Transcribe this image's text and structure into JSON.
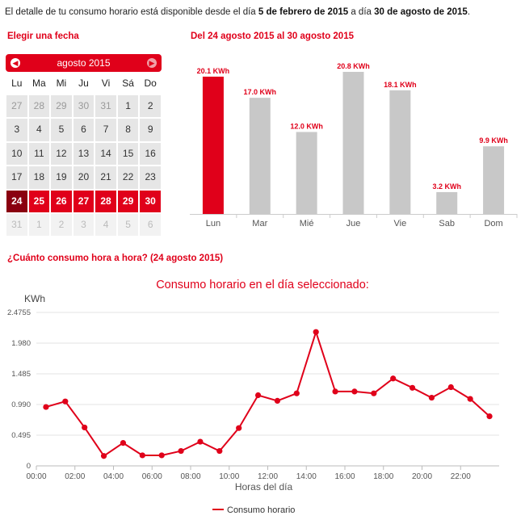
{
  "intro": {
    "prefix": "El detalle de tu consumo horario está disponible desde el día ",
    "from": "5 de febrero de 2015",
    "middle": " a día ",
    "to": "30 de agosto de 2015",
    "suffix": "."
  },
  "calendar": {
    "section_title": "Elegir una fecha",
    "month_label": "agosto 2015",
    "prev_icon": "◀",
    "next_icon": "▶",
    "weekdays": [
      "Lu",
      "Ma",
      "Mi",
      "Ju",
      "Vi",
      "Sá",
      "Do"
    ],
    "days": [
      [
        "27",
        "other"
      ],
      [
        "28",
        "other"
      ],
      [
        "29",
        "other"
      ],
      [
        "30",
        "other"
      ],
      [
        "31",
        "other"
      ],
      [
        "1",
        ""
      ],
      [
        "2",
        ""
      ],
      [
        "3",
        ""
      ],
      [
        "4",
        ""
      ],
      [
        "5",
        ""
      ],
      [
        "6",
        ""
      ],
      [
        "7",
        ""
      ],
      [
        "8",
        ""
      ],
      [
        "9",
        ""
      ],
      [
        "10",
        ""
      ],
      [
        "11",
        ""
      ],
      [
        "12",
        ""
      ],
      [
        "13",
        ""
      ],
      [
        "14",
        ""
      ],
      [
        "15",
        ""
      ],
      [
        "16",
        ""
      ],
      [
        "17",
        ""
      ],
      [
        "18",
        ""
      ],
      [
        "19",
        ""
      ],
      [
        "20",
        ""
      ],
      [
        "21",
        ""
      ],
      [
        "22",
        ""
      ],
      [
        "23",
        ""
      ],
      [
        "24",
        "active"
      ],
      [
        "25",
        "sel"
      ],
      [
        "26",
        "sel"
      ],
      [
        "27",
        "sel"
      ],
      [
        "28",
        "sel"
      ],
      [
        "29",
        "sel"
      ],
      [
        "30",
        "sel"
      ],
      [
        "31",
        "fade"
      ],
      [
        "1",
        "fade"
      ],
      [
        "2",
        "fade"
      ],
      [
        "3",
        "fade"
      ],
      [
        "4",
        "fade"
      ],
      [
        "5",
        "fade"
      ],
      [
        "6",
        "fade"
      ]
    ]
  },
  "weekly": {
    "section_title": "Del 24 agosto 2015 al 30 agosto 2015",
    "highlight_color": "#e0001a",
    "bar_color": "#c8c8c8"
  },
  "hourly": {
    "section_title": "¿Cuánto consumo hora a hora? (24 agosto 2015)",
    "line_color": "#e0001a"
  },
  "chart_data": [
    {
      "type": "bar",
      "title": "",
      "categories": [
        "Lun",
        "Mar",
        "Mié",
        "Jue",
        "Vie",
        "Sab",
        "Dom"
      ],
      "values": [
        20.1,
        17.0,
        12.0,
        20.8,
        18.1,
        3.2,
        9.9
      ],
      "data_labels": [
        "20.1 KWh",
        "17.0 KWh",
        "12.0 KWh",
        "20.8 KWh",
        "18.1 KWh",
        "3.2 KWh",
        "9.9 KWh"
      ],
      "highlight_index": 0,
      "ylim": [
        0,
        20.8
      ]
    },
    {
      "type": "line",
      "title": "Consumo horario en el día seleccionado:",
      "xlabel": "Horas del día",
      "ylabel": "KWh",
      "ylim": [
        0,
        2.4755
      ],
      "yticks": [
        "0",
        "0.495",
        "0.990",
        "1.485",
        "1.980",
        "2.4755"
      ],
      "xticks": [
        "00:00",
        "02:00",
        "04:00",
        "06:00",
        "08:00",
        "10:00",
        "12:00",
        "14:00",
        "16:00",
        "18:00",
        "20:00",
        "22:00"
      ],
      "grid": true,
      "legend_position": "bottom",
      "series": [
        {
          "name": "Consumo horario",
          "x": [
            0.5,
            1.5,
            2.5,
            3.5,
            4.5,
            5.5,
            6.5,
            7.5,
            8.5,
            9.5,
            10.5,
            11.5,
            12.5,
            13.5,
            14.5,
            15.5,
            16.5,
            17.5,
            18.5,
            19.5,
            20.5,
            21.5,
            22.5,
            23.5
          ],
          "values": [
            0.95,
            1.04,
            0.62,
            0.16,
            0.37,
            0.17,
            0.17,
            0.24,
            0.39,
            0.24,
            0.61,
            1.14,
            1.05,
            1.17,
            2.16,
            1.2,
            1.2,
            1.17,
            1.41,
            1.26,
            1.1,
            1.27,
            1.08,
            0.8
          ]
        }
      ]
    }
  ]
}
